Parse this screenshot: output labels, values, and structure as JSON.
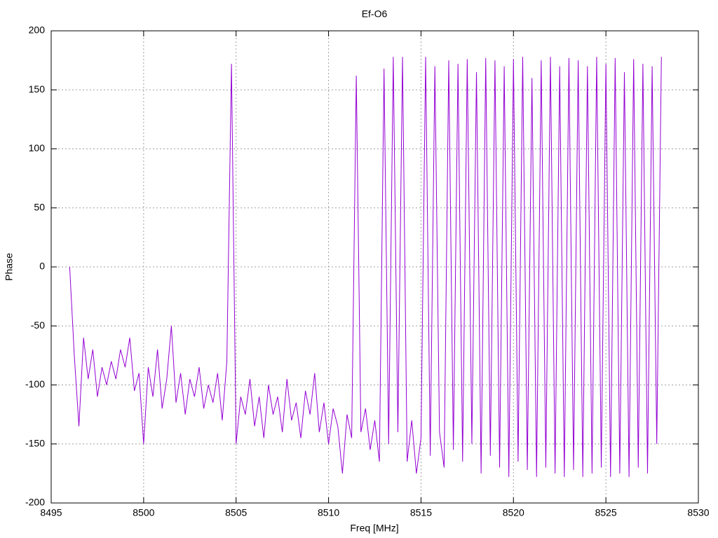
{
  "chart_data": {
    "type": "line",
    "title": "Ef-O6",
    "x_label": "Freq [MHz]",
    "y_label": "Phase",
    "xlim": [
      8495,
      8530
    ],
    "xticks": [
      8495,
      8500,
      8505,
      8510,
      8515,
      8520,
      8525,
      8530
    ],
    "ylim": [
      -200,
      200
    ],
    "yticks": [
      -200,
      -150,
      -100,
      -50,
      0,
      50,
      100,
      150,
      200
    ],
    "grid": true,
    "x": [
      8496,
      8496.25,
      8496.5,
      8496.75,
      8497,
      8497.25,
      8497.5,
      8497.75,
      8498,
      8498.25,
      8498.5,
      8498.75,
      8499,
      8499.25,
      8499.5,
      8499.75,
      8500,
      8500.25,
      8500.5,
      8500.75,
      8501,
      8501.25,
      8501.5,
      8501.75,
      8502,
      8502.25,
      8502.5,
      8502.75,
      8503,
      8503.25,
      8503.5,
      8503.75,
      8504,
      8504.25,
      8504.5,
      8504.75,
      8505,
      8505.25,
      8505.5,
      8505.75,
      8506,
      8506.25,
      8506.5,
      8506.75,
      8507,
      8507.25,
      8507.5,
      8507.75,
      8508,
      8508.25,
      8508.5,
      8508.75,
      8509,
      8509.25,
      8509.5,
      8509.75,
      8510,
      8510.25,
      8510.5,
      8510.75,
      8511,
      8511.25,
      8511.5,
      8511.75,
      8512,
      8512.25,
      8512.5,
      8512.75,
      8513,
      8513.25,
      8513.5,
      8513.75,
      8514,
      8514.25,
      8514.5,
      8514.75,
      8515,
      8515.25,
      8515.5,
      8515.75,
      8516,
      8516.25,
      8516.5,
      8516.75,
      8517,
      8517.25,
      8517.5,
      8517.75,
      8518,
      8518.25,
      8518.5,
      8518.75,
      8519,
      8519.25,
      8519.5,
      8519.75,
      8520,
      8520.25,
      8520.5,
      8520.75,
      8521,
      8521.25,
      8521.5,
      8521.75,
      8522,
      8522.25,
      8522.5,
      8522.75,
      8523,
      8523.25,
      8523.5,
      8523.75,
      8524,
      8524.25,
      8524.5,
      8524.75,
      8525,
      8525.25,
      8525.5,
      8525.75,
      8526,
      8526.25,
      8526.5,
      8526.75,
      8527,
      8527.25,
      8527.5,
      8527.75,
      8528
    ],
    "series": [
      {
        "color": "#9400d3",
        "values": [
          0,
          -75,
          -135,
          -60,
          -95,
          -70,
          -110,
          -85,
          -100,
          -80,
          -95,
          -70,
          -85,
          -60,
          -105,
          -90,
          -150,
          -85,
          -110,
          -70,
          -120,
          -95,
          -50,
          -115,
          -90,
          -125,
          -95,
          -110,
          -85,
          -120,
          -100,
          -115,
          -90,
          -130,
          -80,
          172,
          -150,
          -110,
          -125,
          -95,
          -135,
          -110,
          -145,
          -100,
          -125,
          -110,
          -140,
          -95,
          -130,
          -115,
          -145,
          -105,
          -125,
          -90,
          -140,
          -115,
          -150,
          -120,
          -135,
          -175,
          -125,
          -145,
          162,
          -140,
          -120,
          -155,
          -130,
          -165,
          168,
          -150,
          178,
          -140,
          178,
          -165,
          -130,
          -175,
          -145,
          178,
          -160,
          170,
          -140,
          -170,
          175,
          -155,
          172,
          -165,
          176,
          -150,
          165,
          -175,
          177,
          -160,
          175,
          -170,
          170,
          -178,
          176,
          -165,
          178,
          -172,
          160,
          -178,
          175,
          -170,
          178,
          -175,
          170,
          -178,
          177,
          -172,
          175,
          -178,
          170,
          -175,
          178,
          -170,
          172,
          -178,
          177,
          -175,
          165,
          -178,
          176,
          -170,
          172,
          -175,
          170,
          -150,
          178
        ]
      }
    ]
  }
}
